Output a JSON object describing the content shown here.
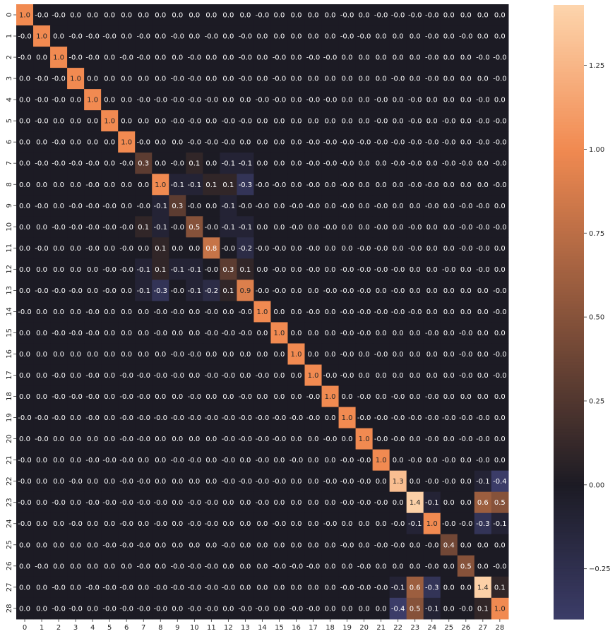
{
  "chart_data": {
    "type": "heatmap",
    "title": "",
    "xlabel": "",
    "ylabel": "",
    "x_labels": [
      "0",
      "1",
      "2",
      "3",
      "4",
      "5",
      "6",
      "7",
      "8",
      "9",
      "10",
      "11",
      "12",
      "13",
      "14",
      "15",
      "16",
      "17",
      "18",
      "19",
      "20",
      "21",
      "22",
      "23",
      "24",
      "25",
      "26",
      "27",
      "28"
    ],
    "y_labels": [
      "0",
      "1",
      "2",
      "3",
      "4",
      "5",
      "6",
      "7",
      "8",
      "9",
      "10",
      "11",
      "12",
      "13",
      "14",
      "15",
      "16",
      "17",
      "18",
      "19",
      "20",
      "21",
      "22",
      "23",
      "24",
      "25",
      "26",
      "27",
      "28"
    ],
    "cell_text": [
      [
        "1.0",
        "-0.0",
        "-0.0",
        "0.0",
        "0.0",
        "0.0",
        "0.0",
        "0.0",
        "0.0",
        "0.0",
        "0.0",
        "0.0",
        "0.0",
        "0.0",
        "-0.0",
        "0.0",
        "0.0",
        "0.0",
        "0.0",
        "-0.0",
        "0.0",
        "-0.0",
        "-0.0",
        "-0.0",
        "-0.0",
        "0.0",
        "0.0",
        "0.0",
        "0.0"
      ],
      [
        "-0.0",
        "1.0",
        "0.0",
        "-0.0",
        "-0.0",
        "-0.0",
        "0.0",
        "-0.0",
        "0.0",
        "-0.0",
        "0.0",
        "-0.0",
        "0.0",
        "-0.0",
        "0.0",
        "0.0",
        "0.0",
        "0.0",
        "0.0",
        "-0.0",
        "-0.0",
        "0.0",
        "0.0",
        "0.0",
        "-0.0",
        "0.0",
        "-0.0",
        "0.0",
        "0.0"
      ],
      [
        "-0.0",
        "0.0",
        "1.0",
        "-0.0",
        "-0.0",
        "0.0",
        "-0.0",
        "-0.0",
        "0.0",
        "0.0",
        "-0.0",
        "0.0",
        "0.0",
        "-0.0",
        "0.0",
        "-0.0",
        "0.0",
        "-0.0",
        "-0.0",
        "0.0",
        "0.0",
        "0.0",
        "0.0",
        "0.0",
        "-0.0",
        "0.0",
        "0.0",
        "-0.0",
        "-0.0"
      ],
      [
        "0.0",
        "-0.0",
        "-0.0",
        "1.0",
        "0.0",
        "0.0",
        "0.0",
        "0.0",
        "0.0",
        "-0.0",
        "-0.0",
        "0.0",
        "0.0",
        "-0.0",
        "0.0",
        "-0.0",
        "0.0",
        "0.0",
        "0.0",
        "0.0",
        "0.0",
        "0.0",
        "-0.0",
        "0.0",
        "-0.0",
        "0.0",
        "0.0",
        "0.0",
        "-0.0"
      ],
      [
        "0.0",
        "-0.0",
        "-0.0",
        "0.0",
        "1.0",
        "0.0",
        "0.0",
        "-0.0",
        "-0.0",
        "-0.0",
        "-0.0",
        "-0.0",
        "0.0",
        "0.0",
        "-0.0",
        "-0.0",
        "0.0",
        "-0.0",
        "-0.0",
        "0.0",
        "0.0",
        "-0.0",
        "0.0",
        "-0.0",
        "0.0",
        "0.0",
        "0.0",
        "-0.0",
        "0.0"
      ],
      [
        "0.0",
        "-0.0",
        "0.0",
        "0.0",
        "0.0",
        "1.0",
        "0.0",
        "0.0",
        "0.0",
        "-0.0",
        "-0.0",
        "0.0",
        "-0.0",
        "-0.0",
        "0.0",
        "0.0",
        "0.0",
        "0.0",
        "0.0",
        "0.0",
        "0.0",
        "-0.0",
        "0.0",
        "-0.0",
        "0.0",
        "-0.0",
        "0.0",
        "-0.0",
        "-0.0"
      ],
      [
        "0.0",
        "0.0",
        "-0.0",
        "0.0",
        "0.0",
        "0.0",
        "1.0",
        "-0.0",
        "0.0",
        "0.0",
        "-0.0",
        "-0.0",
        "-0.0",
        "0.0",
        "0.0",
        "0.0",
        "0.0",
        "-0.0",
        "-0.0",
        "-0.0",
        "-0.0",
        "-0.0",
        "-0.0",
        "-0.0",
        "-0.0",
        "-0.0",
        "0.0",
        "-0.0",
        "-0.0"
      ],
      [
        "0.0",
        "-0.0",
        "-0.0",
        "-0.0",
        "-0.0",
        "0.0",
        "-0.0",
        "0.3",
        "0.0",
        "-0.0",
        "0.1",
        "0.0",
        "-0.1",
        "-0.1",
        "0.0",
        "0.0",
        "0.0",
        "-0.0",
        "-0.0",
        "-0.0",
        "0.0",
        "0.0",
        "-0.0",
        "-0.0",
        "0.0",
        "-0.0",
        "-0.0",
        "0.0",
        "-0.0"
      ],
      [
        "0.0",
        "0.0",
        "0.0",
        "0.0",
        "-0.0",
        "0.0",
        "0.0",
        "0.0",
        "1.0",
        "-0.1",
        "-0.1",
        "0.1",
        "0.1",
        "-0.3",
        "-0.0",
        "-0.0",
        "0.0",
        "-0.0",
        "0.0",
        "-0.0",
        "0.0",
        "0.0",
        "0.0",
        "-0.0",
        "-0.0",
        "0.0",
        "0.0",
        "0.0",
        "-0.0"
      ],
      [
        "0.0",
        "-0.0",
        "0.0",
        "-0.0",
        "-0.0",
        "-0.0",
        "0.0",
        "-0.0",
        "-0.1",
        "0.3",
        "-0.0",
        "0.0",
        "-0.1",
        "-0.0",
        "-0.0",
        "0.0",
        "-0.0",
        "-0.0",
        "0.0",
        "-0.0",
        "0.0",
        "-0.0",
        "0.0",
        "0.0",
        "-0.0",
        "0.0",
        "-0.0",
        "-0.0",
        "0.0"
      ],
      [
        "0.0",
        "0.0",
        "-0.0",
        "-0.0",
        "-0.0",
        "-0.0",
        "-0.0",
        "0.1",
        "-0.1",
        "-0.0",
        "0.5",
        "-0.0",
        "-0.1",
        "-0.1",
        "0.0",
        "0.0",
        "-0.0",
        "0.0",
        "-0.0",
        "0.0",
        "0.0",
        "-0.0",
        "0.0",
        "-0.0",
        "0.0",
        "0.0",
        "-0.0",
        "-0.0",
        "-0.0"
      ],
      [
        "0.0",
        "-0.0",
        "0.0",
        "0.0",
        "-0.0",
        "0.0",
        "-0.0",
        "0.0",
        "0.1",
        "0.0",
        "0.0",
        "0.8",
        "-0.0",
        "-0.2",
        "-0.0",
        "-0.0",
        "0.0",
        "-0.0",
        "0.0",
        "0.0",
        "-0.0",
        "-0.0",
        "0.0",
        "-0.0",
        "0.0",
        "0.0",
        "-0.0",
        "-0.0",
        "0.0"
      ],
      [
        "0.0",
        "0.0",
        "0.0",
        "0.0",
        "0.0",
        "-0.0",
        "-0.0",
        "-0.1",
        "0.1",
        "-0.1",
        "-0.1",
        "-0.0",
        "0.3",
        "0.1",
        "0.0",
        "-0.0",
        "0.0",
        "-0.0",
        "0.0",
        "-0.0",
        "-0.0",
        "-0.0",
        "-0.0",
        "0.0",
        "0.0",
        "-0.0",
        "0.0",
        "-0.0",
        "0.0"
      ],
      [
        "0.0",
        "-0.0",
        "-0.0",
        "-0.0",
        "0.0",
        "-0.0",
        "0.0",
        "-0.1",
        "-0.3",
        "-0.0",
        "-0.1",
        "-0.2",
        "0.1",
        "0.9",
        "-0.0",
        "-0.0",
        "0.0",
        "0.0",
        "-0.0",
        "-0.0",
        "-0.0",
        "0.0",
        "-0.0",
        "0.0",
        "0.0",
        "0.0",
        "0.0",
        "0.0",
        "-0.0"
      ],
      [
        "-0.0",
        "0.0",
        "0.0",
        "0.0",
        "-0.0",
        "0.0",
        "0.0",
        "0.0",
        "-0.0",
        "-0.0",
        "0.0",
        "-0.0",
        "0.0",
        "-0.0",
        "1.0",
        "0.0",
        "0.0",
        "-0.0",
        "0.0",
        "-0.0",
        "-0.0",
        "-0.0",
        "-0.0",
        "-0.0",
        "0.0",
        "0.0",
        "0.0",
        "0.0",
        "-0.0"
      ],
      [
        "0.0",
        "0.0",
        "-0.0",
        "-0.0",
        "-0.0",
        "0.0",
        "0.0",
        "0.0",
        "-0.0",
        "0.0",
        "0.0",
        "-0.0",
        "-0.0",
        "-0.0",
        "0.0",
        "1.0",
        "0.0",
        "0.0",
        "0.0",
        "-0.0",
        "-0.0",
        "0.0",
        "0.0",
        "0.0",
        "-0.0",
        "0.0",
        "-0.0",
        "0.0",
        "0.0"
      ],
      [
        "0.0",
        "0.0",
        "0.0",
        "0.0",
        "0.0",
        "0.0",
        "0.0",
        "0.0",
        "0.0",
        "-0.0",
        "-0.0",
        "0.0",
        "0.0",
        "0.0",
        "0.0",
        "0.0",
        "1.0",
        "0.0",
        "0.0",
        "-0.0",
        "0.0",
        "-0.0",
        "0.0",
        "0.0",
        "0.0",
        "0.0",
        "-0.0",
        "0.0",
        "-0.0"
      ],
      [
        "0.0",
        "0.0",
        "-0.0",
        "0.0",
        "-0.0",
        "0.0",
        "-0.0",
        "-0.0",
        "-0.0",
        "-0.0",
        "0.0",
        "-0.0",
        "-0.0",
        "0.0",
        "-0.0",
        "0.0",
        "0.0",
        "1.0",
        "-0.0",
        "-0.0",
        "0.0",
        "0.0",
        "0.0",
        "0.0",
        "0.0",
        "0.0",
        "-0.0",
        "0.0",
        "-0.0"
      ],
      [
        "0.0",
        "0.0",
        "-0.0",
        "-0.0",
        "-0.0",
        "0.0",
        "-0.0",
        "-0.0",
        "0.0",
        "0.0",
        "-0.0",
        "0.0",
        "0.0",
        "-0.0",
        "0.0",
        "0.0",
        "0.0",
        "-0.0",
        "1.0",
        "0.0",
        "-0.0",
        "0.0",
        "-0.0",
        "0.0",
        "-0.0",
        "0.0",
        "0.0",
        "0.0",
        "0.0"
      ],
      [
        "-0.0",
        "-0.0",
        "-0.0",
        "0.0",
        "-0.0",
        "0.0",
        "-0.0",
        "-0.0",
        "-0.0",
        "-0.0",
        "-0.0",
        "-0.0",
        "-0.0",
        "-0.0",
        "-0.0",
        "-0.0",
        "-0.0",
        "-0.0",
        "0.0",
        "1.0",
        "-0.0",
        "-0.0",
        "-0.0",
        "-0.0",
        "-0.0",
        "-0.0",
        "-0.0",
        "-0.0",
        "0.0"
      ],
      [
        "0.0",
        "-0.0",
        "0.0",
        "0.0",
        "0.0",
        "0.0",
        "-0.0",
        "-0.0",
        "0.0",
        "0.0",
        "0.0",
        "0.0",
        "-0.0",
        "-0.0",
        "-0.0",
        "-0.0",
        "0.0",
        "0.0",
        "-0.0",
        "0.0",
        "1.0",
        "-0.0",
        "-0.0",
        "0.0",
        "-0.0",
        "0.0",
        "-0.0",
        "-0.0",
        "0.0"
      ],
      [
        "-0.0",
        "0.0",
        "0.0",
        "0.0",
        "-0.0",
        "-0.0",
        "-0.0",
        "0.0",
        "0.0",
        "-0.0",
        "-0.0",
        "0.0",
        "-0.0",
        "0.0",
        "-0.0",
        "0.0",
        "-0.0",
        "0.0",
        "0.0",
        "-0.0",
        "-0.0",
        "1.0",
        "0.0",
        "-0.0",
        "0.0",
        "-0.0",
        "0.0",
        "-0.0",
        "0.0"
      ],
      [
        "-0.0",
        "0.0",
        "0.0",
        "-0.0",
        "0.0",
        "0.0",
        "-0.0",
        "-0.0",
        "0.0",
        "0.0",
        "0.0",
        "0.0",
        "-0.0",
        "-0.0",
        "-0.0",
        "-0.0",
        "0.0",
        "0.0",
        "-0.0",
        "-0.0",
        "-0.0",
        "0.0",
        "1.3",
        "0.0",
        "-0.0",
        "-0.0",
        "0.0",
        "-0.1",
        "-0.4"
      ],
      [
        "-0.0",
        "0.0",
        "-0.0",
        "0.0",
        "-0.0",
        "-0.0",
        "-0.0",
        "-0.0",
        "-0.0",
        "0.0",
        "-0.0",
        "-0.0",
        "0.0",
        "0.0",
        "-0.0",
        "0.0",
        "0.0",
        "0.0",
        "0.0",
        "-0.0",
        "-0.0",
        "-0.0",
        "0.0",
        "1.4",
        "-0.1",
        "0.0",
        "0.0",
        "0.6",
        "0.5"
      ],
      [
        "-0.0",
        "0.0",
        "0.0",
        "-0.0",
        "0.0",
        "0.0",
        "-0.0",
        "0.0",
        "-0.0",
        "0.0",
        "-0.0",
        "-0.0",
        "0.0",
        "0.0",
        "0.0",
        "-0.0",
        "0.0",
        "0.0",
        "-0.0",
        "0.0",
        "0.0",
        "0.0",
        "-0.0",
        "-0.1",
        "1.0",
        "-0.0",
        "-0.0",
        "-0.3",
        "-0.1"
      ],
      [
        "0.0",
        "0.0",
        "0.0",
        "0.0",
        "0.0",
        "-0.0",
        "-0.0",
        "-0.0",
        "0.0",
        "0.0",
        "0.0",
        "0.0",
        "-0.0",
        "0.0",
        "0.0",
        "0.0",
        "0.0",
        "0.0",
        "0.0",
        "-0.0",
        "0.0",
        "-0.0",
        "-0.0",
        "0.0",
        "-0.0",
        "0.4",
        "0.0",
        "0.0",
        "0.0"
      ],
      [
        "0.0",
        "-0.0",
        "0.0",
        "0.0",
        "0.0",
        "0.0",
        "0.0",
        "-0.0",
        "0.0",
        "-0.0",
        "-0.0",
        "-0.0",
        "0.0",
        "0.0",
        "0.0",
        "-0.0",
        "-0.0",
        "-0.0",
        "0.0",
        "0.0",
        "-0.0",
        "0.0",
        "0.0",
        "0.0",
        "-0.0",
        "0.0",
        "0.5",
        "0.0",
        "-0.0"
      ],
      [
        "0.0",
        "0.0",
        "-0.0",
        "0.0",
        "-0.0",
        "-0.0",
        "-0.0",
        "0.0",
        "-0.0",
        "-0.0",
        "-0.0",
        "-0.0",
        "-0.0",
        "0.0",
        "0.0",
        "0.0",
        "0.0",
        "0.0",
        "0.0",
        "-0.0",
        "-0.0",
        "-0.0",
        "-0.1",
        "0.6",
        "-0.3",
        "0.0",
        "0.0",
        "1.4",
        "0.1"
      ],
      [
        "0.0",
        "0.0",
        "-0.0",
        "-0.0",
        "0.0",
        "-0.0",
        "-0.0",
        "-0.0",
        "-0.0",
        "0.0",
        "-0.0",
        "-0.0",
        "0.0",
        "-0.0",
        "-0.0",
        "0.0",
        "-0.0",
        "-0.0",
        "0.0",
        "0.0",
        "0.0",
        "0.0",
        "-0.4",
        "0.5",
        "-0.1",
        "0.0",
        "-0.0",
        "0.1",
        "1.0"
      ]
    ],
    "colorbar": {
      "min": -0.4,
      "max": 1.43,
      "center": 0.0,
      "ticks": [
        -0.25,
        0.0,
        0.25,
        0.5,
        0.75,
        1.0,
        1.25
      ],
      "tick_labels": [
        "−0.25",
        "0.00",
        "0.25",
        "0.50",
        "0.75",
        "1.00",
        "1.25"
      ],
      "colors": [
        "#3b3c68",
        "#1c1b24",
        "#f18a51",
        "#fdd5ad"
      ]
    },
    "grid": false,
    "legend": "right"
  }
}
